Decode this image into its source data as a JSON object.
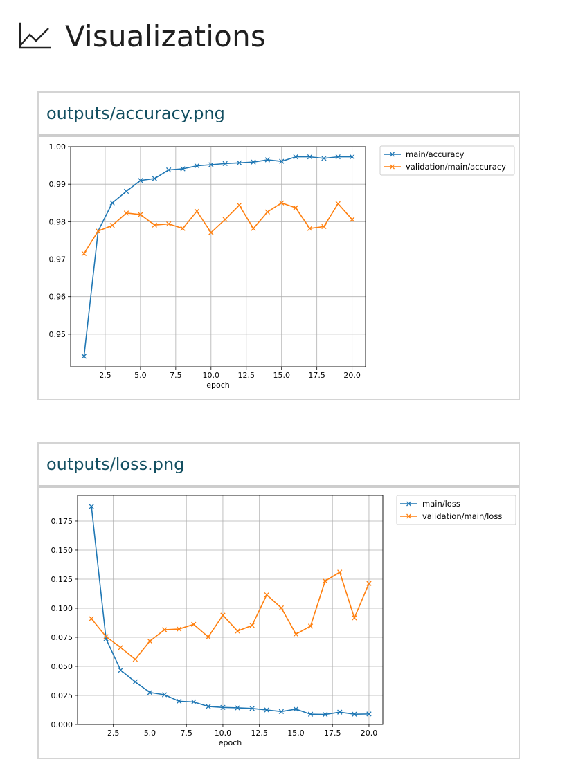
{
  "page": {
    "title": "Visualizations",
    "icon": "line-chart-icon"
  },
  "cards": [
    {
      "title": "outputs/accuracy.png",
      "chart_data": {
        "type": "line",
        "xlabel": "epoch",
        "ylabel": "",
        "xlim": [
          0.05,
          20.95
        ],
        "ylim": [
          0.9413,
          1.0
        ],
        "xticks": [
          2.5,
          5.0,
          7.5,
          10.0,
          12.5,
          15.0,
          17.5,
          20.0
        ],
        "xtick_labels": [
          "2.5",
          "5.0",
          "7.5",
          "10.0",
          "12.5",
          "15.0",
          "17.5",
          "20.0"
        ],
        "yticks": [
          0.95,
          0.96,
          0.97,
          0.98,
          0.99,
          1.0
        ],
        "ytick_labels": [
          "0.95",
          "0.96",
          "0.97",
          "0.98",
          "0.99",
          "1.00"
        ],
        "grid": true,
        "legend": "outside-upper-right",
        "x": [
          1,
          2,
          3,
          4,
          5,
          6,
          7,
          8,
          9,
          10,
          11,
          12,
          13,
          14,
          15,
          16,
          17,
          18,
          19,
          20
        ],
        "series": [
          {
            "name": "main/accuracy",
            "color": "#1f77b4",
            "marker": "x",
            "values": [
              0.9441,
              0.9775,
              0.985,
              0.9881,
              0.991,
              0.9915,
              0.9938,
              0.9941,
              0.9949,
              0.9952,
              0.9955,
              0.9957,
              0.9959,
              0.9965,
              0.9961,
              0.9973,
              0.9973,
              0.9969,
              0.9973,
              0.9973
            ]
          },
          {
            "name": "validation/main/accuracy",
            "color": "#ff7f0e",
            "marker": "x",
            "values": [
              0.9715,
              0.9775,
              0.979,
              0.9823,
              0.9819,
              0.9791,
              0.9794,
              0.9782,
              0.9828,
              0.9771,
              0.9806,
              0.9844,
              0.9782,
              0.9826,
              0.985,
              0.9837,
              0.9782,
              0.9787,
              0.9848,
              0.9806
            ]
          }
        ]
      }
    },
    {
      "title": "outputs/loss.png",
      "chart_data": {
        "type": "line",
        "xlabel": "epoch",
        "ylabel": "",
        "xlim": [
          0.05,
          20.95
        ],
        "ylim": [
          0.0,
          0.197
        ],
        "xticks": [
          2.5,
          5.0,
          7.5,
          10.0,
          12.5,
          15.0,
          17.5,
          20.0
        ],
        "xtick_labels": [
          "2.5",
          "5.0",
          "7.5",
          "10.0",
          "12.5",
          "15.0",
          "17.5",
          "20.0"
        ],
        "yticks": [
          0.0,
          0.025,
          0.05,
          0.075,
          0.1,
          0.125,
          0.15,
          0.175
        ],
        "ytick_labels": [
          "0.000",
          "0.025",
          "0.050",
          "0.075",
          "0.100",
          "0.125",
          "0.150",
          "0.175"
        ],
        "grid": true,
        "legend": "outside-upper-right",
        "x": [
          1,
          2,
          3,
          4,
          5,
          6,
          7,
          8,
          9,
          10,
          11,
          12,
          13,
          14,
          15,
          16,
          17,
          18,
          19,
          20
        ],
        "series": [
          {
            "name": "main/loss",
            "color": "#1f77b4",
            "marker": "x",
            "values": [
              0.1875,
              0.0737,
              0.0467,
              0.0367,
              0.0275,
              0.0256,
              0.02,
              0.0194,
              0.0155,
              0.0147,
              0.0143,
              0.0138,
              0.0125,
              0.0111,
              0.0132,
              0.0088,
              0.0086,
              0.0106,
              0.0088,
              0.009
            ]
          },
          {
            "name": "validation/main/loss",
            "color": "#ff7f0e",
            "marker": "x",
            "values": [
              0.091,
              0.0756,
              0.0662,
              0.0561,
              0.0717,
              0.0815,
              0.0821,
              0.0861,
              0.0753,
              0.094,
              0.0804,
              0.0852,
              0.1115,
              0.1003,
              0.0777,
              0.0846,
              0.1234,
              0.131,
              0.0917,
              0.1213
            ]
          }
        ]
      }
    }
  ]
}
